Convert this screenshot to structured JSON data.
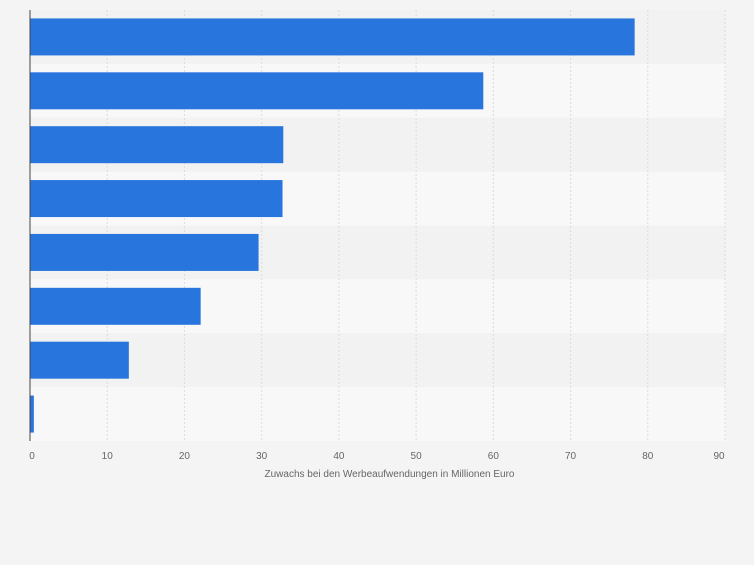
{
  "chart_data": {
    "type": "bar",
    "orientation": "horizontal",
    "categories": [
      "",
      "",
      "",
      "",
      "",
      "",
      "",
      ""
    ],
    "values": [
      78.3,
      58.7,
      32.8,
      32.7,
      29.6,
      22.1,
      12.8,
      0.5
    ],
    "title": "",
    "xlabel": "Zuwachs bei den Werbeaufwendungen in Millionen Euro",
    "ylabel": "",
    "xlim": [
      0,
      90
    ],
    "xticks": [
      "0",
      "10",
      "20",
      "30",
      "40",
      "50",
      "60",
      "70",
      "80",
      "90"
    ],
    "grid": true,
    "legend": "none"
  },
  "colors": {
    "bar": "#2876dd",
    "background": "#f4f4f4",
    "band_light": "#f8f8f8",
    "band_dark": "#f2f2f2",
    "grid": "#dcdcdc",
    "axis": "#444444",
    "text": "#666666"
  }
}
